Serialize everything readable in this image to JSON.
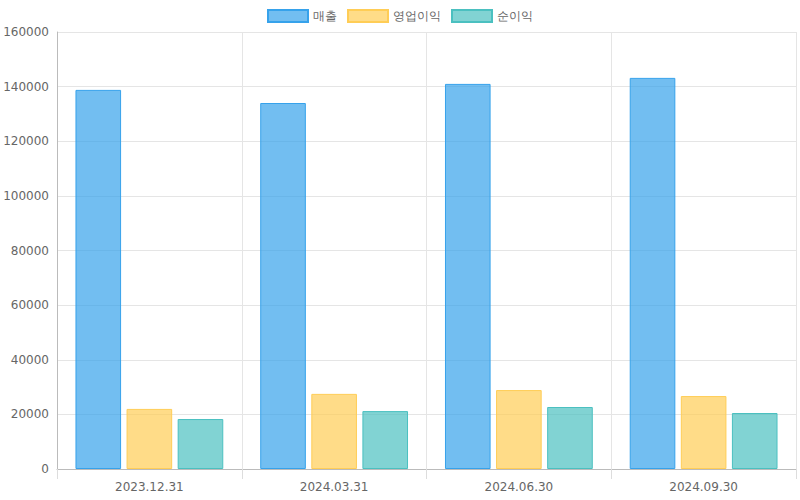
{
  "chart_data": {
    "type": "bar",
    "categories": [
      "2023.12.31",
      "2024.03.31",
      "2024.06.30",
      "2024.09.30"
    ],
    "series": [
      {
        "name": "매출",
        "color": "#36a2eb",
        "values": [
          138800,
          134000,
          141000,
          143200
        ]
      },
      {
        "name": "영업이익",
        "color": "#ffcd56",
        "values": [
          22000,
          27500,
          28900,
          26700
        ]
      },
      {
        "name": "순이익",
        "color": "#4bc0c0",
        "values": [
          18300,
          21200,
          22700,
          20500
        ]
      }
    ],
    "ylim": [
      0,
      160000
    ],
    "yticks": [
      0,
      20000,
      40000,
      60000,
      80000,
      100000,
      120000,
      140000,
      160000
    ],
    "grid": true,
    "legend": "top"
  }
}
